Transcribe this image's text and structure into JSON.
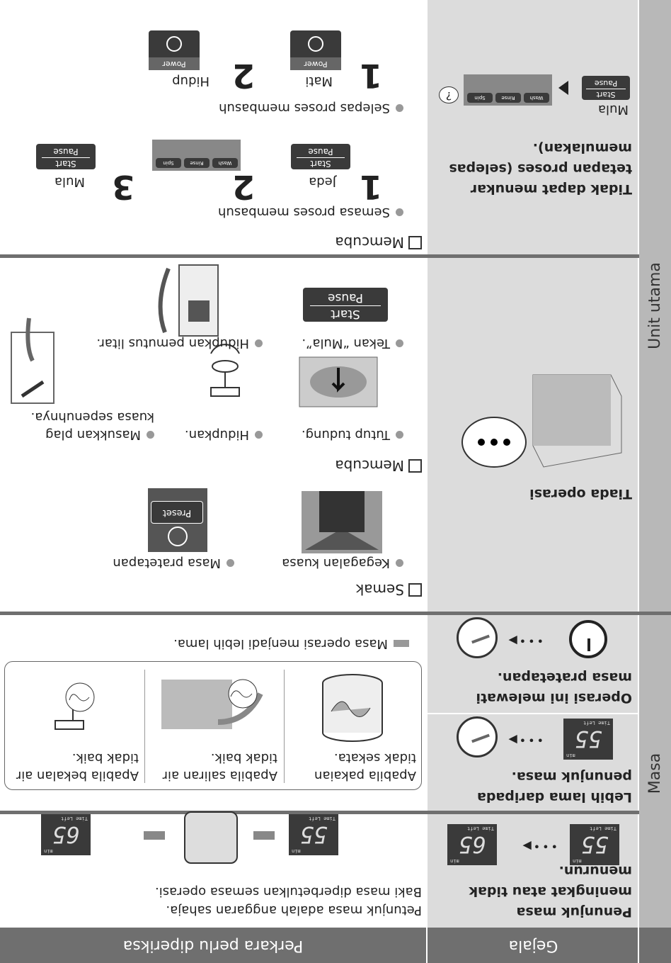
{
  "header": {
    "symptom": "Gejala",
    "check": "Perkara perlu diperiksa"
  },
  "groups": [
    "Masa",
    "Unit utama"
  ],
  "display": {
    "time_left": "Time Left",
    "min": "min",
    "before": "55",
    "after": "65"
  },
  "buttons": {
    "start": "Start",
    "pause": "Pause",
    "preset": "Preset",
    "power": "Power",
    "wash": "Wash",
    "rinse": "Rinse",
    "spin": "Spin"
  },
  "rows": [
    {
      "symptom": "Penunjuk masa meningkat atau tidak menurun.",
      "checks": [
        "Petunjuk masa adalah anggaran sahaja.",
        "Baki masa diperbetulkan semasa operasi."
      ]
    },
    {
      "symptom": "Lebih lama daripada penunjuk masa."
    },
    {
      "symptom": "Operasi ini melewati masa pratetapan.",
      "causes": [
        "Apabila pakaian tidak sekata.",
        "Apabila saliran air tidak baik.",
        "Apabila bekalan air tidak baik."
      ],
      "result": "Masa operasi menjadi lebih lama."
    },
    {
      "symptom": "Tiada operasi",
      "check_title": "Semak",
      "check_items": [
        "Kegagalan kuasa",
        "Masa pratetapan"
      ],
      "try_title": "Memcuba",
      "try_items": [
        "Tutup tudung.",
        "Hidupkan.",
        "Masukkan plag kuasa sepenuhnya.",
        "Tekan “Mula”.",
        "Hidupkan pemutus litar."
      ]
    },
    {
      "symptom": "Tidak dapat menukar tetapan proses (selepas memulakan).",
      "symptom_label": "Mula",
      "question": "?",
      "try_title": "Memcuba",
      "during": "Semasa proses membasuh",
      "during_steps": [
        {
          "n": "1",
          "label": "Jeda"
        },
        {
          "n": "2"
        },
        {
          "n": "3",
          "label": "Mula"
        }
      ],
      "after": "Selepas proses membasuh",
      "after_steps": [
        {
          "n": "1",
          "label": "Mati"
        },
        {
          "n": "2",
          "label": "Hidup"
        }
      ]
    }
  ]
}
